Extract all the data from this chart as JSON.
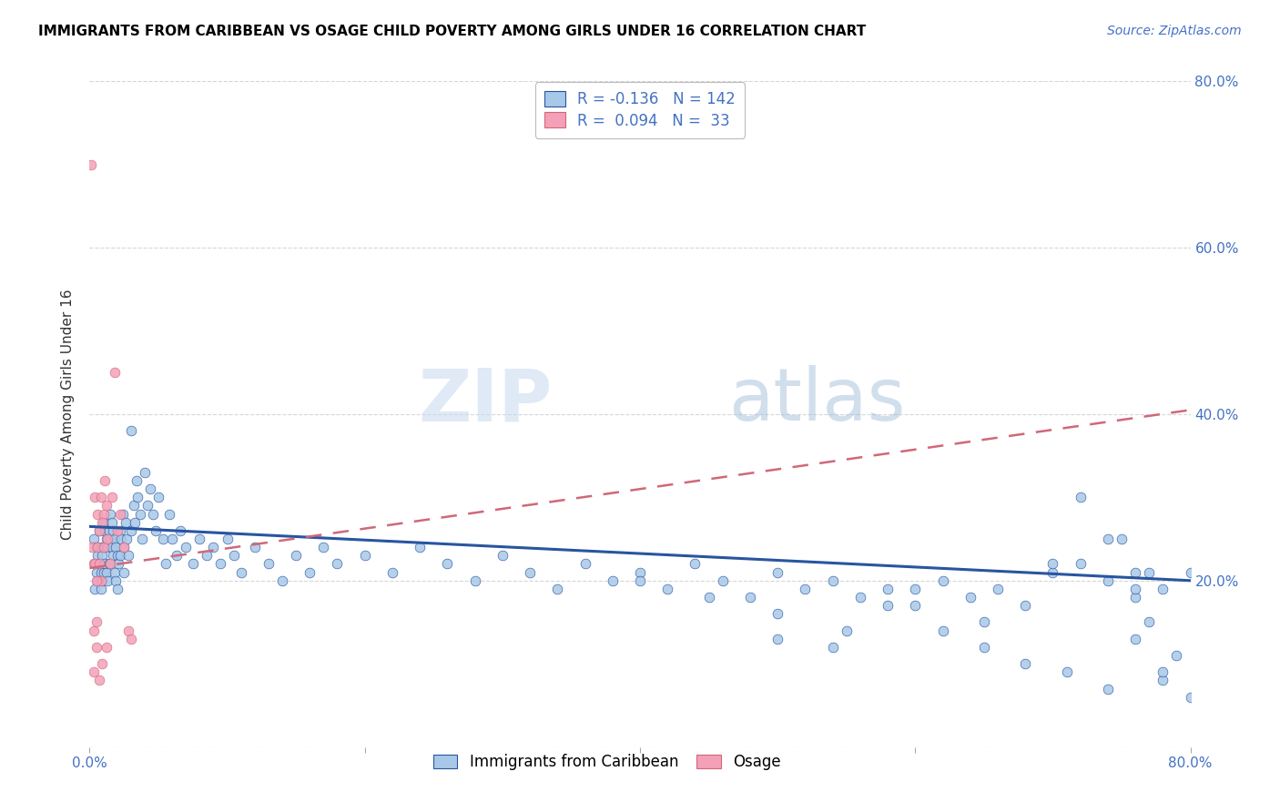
{
  "title": "IMMIGRANTS FROM CARIBBEAN VS OSAGE CHILD POVERTY AMONG GIRLS UNDER 16 CORRELATION CHART",
  "source": "Source: ZipAtlas.com",
  "ylabel": "Child Poverty Among Girls Under 16",
  "xlim": [
    0.0,
    0.8
  ],
  "ylim": [
    0.0,
    0.8
  ],
  "xticks": [
    0.0,
    0.2,
    0.4,
    0.6,
    0.8
  ],
  "yticks": [
    0.0,
    0.2,
    0.4,
    0.6,
    0.8
  ],
  "xticklabels_show": [
    "0.0%",
    "80.0%"
  ],
  "yticklabels_right": [
    "",
    "20.0%",
    "40.0%",
    "60.0%",
    "80.0%"
  ],
  "watermark": "ZIPatlas",
  "color_caribbean": "#a8c8e8",
  "color_osage": "#f4a0b8",
  "line_color_caribbean": "#2855a0",
  "line_color_osage": "#d06878",
  "r_caribbean": -0.136,
  "n_caribbean": 142,
  "r_osage": 0.094,
  "n_osage": 33,
  "carib_trend_x": [
    0.0,
    0.8
  ],
  "carib_trend_y": [
    0.265,
    0.2
  ],
  "osage_trend_x": [
    0.0,
    0.8
  ],
  "osage_trend_y": [
    0.215,
    0.405
  ],
  "carib_x": [
    0.003,
    0.004,
    0.004,
    0.005,
    0.005,
    0.006,
    0.006,
    0.007,
    0.007,
    0.008,
    0.008,
    0.008,
    0.009,
    0.009,
    0.01,
    0.01,
    0.01,
    0.011,
    0.011,
    0.012,
    0.012,
    0.013,
    0.013,
    0.014,
    0.014,
    0.015,
    0.015,
    0.015,
    0.016,
    0.016,
    0.017,
    0.017,
    0.018,
    0.018,
    0.019,
    0.019,
    0.02,
    0.02,
    0.021,
    0.022,
    0.022,
    0.023,
    0.024,
    0.025,
    0.025,
    0.026,
    0.027,
    0.028,
    0.03,
    0.03,
    0.032,
    0.033,
    0.034,
    0.035,
    0.037,
    0.038,
    0.04,
    0.042,
    0.044,
    0.046,
    0.048,
    0.05,
    0.053,
    0.055,
    0.058,
    0.06,
    0.063,
    0.066,
    0.07,
    0.075,
    0.08,
    0.085,
    0.09,
    0.095,
    0.1,
    0.105,
    0.11,
    0.12,
    0.13,
    0.14,
    0.15,
    0.16,
    0.17,
    0.18,
    0.2,
    0.22,
    0.24,
    0.26,
    0.28,
    0.3,
    0.32,
    0.34,
    0.36,
    0.38,
    0.4,
    0.42,
    0.44,
    0.46,
    0.48,
    0.5,
    0.52,
    0.54,
    0.56,
    0.58,
    0.6,
    0.62,
    0.64,
    0.66,
    0.68,
    0.7,
    0.72,
    0.74,
    0.76,
    0.78,
    0.8,
    0.4,
    0.45,
    0.5,
    0.55,
    0.6,
    0.65,
    0.7,
    0.72,
    0.74,
    0.76,
    0.5,
    0.54,
    0.58,
    0.62,
    0.65,
    0.68,
    0.71,
    0.74,
    0.76,
    0.77,
    0.78,
    0.79,
    0.8,
    0.75,
    0.76,
    0.77,
    0.78
  ],
  "carib_y": [
    0.25,
    0.22,
    0.19,
    0.24,
    0.21,
    0.23,
    0.2,
    0.26,
    0.22,
    0.19,
    0.24,
    0.21,
    0.23,
    0.2,
    0.27,
    0.24,
    0.21,
    0.26,
    0.22,
    0.25,
    0.21,
    0.24,
    0.2,
    0.26,
    0.22,
    0.28,
    0.25,
    0.22,
    0.27,
    0.24,
    0.26,
    0.23,
    0.25,
    0.21,
    0.24,
    0.2,
    0.23,
    0.19,
    0.22,
    0.26,
    0.23,
    0.25,
    0.28,
    0.24,
    0.21,
    0.27,
    0.25,
    0.23,
    0.38,
    0.26,
    0.29,
    0.27,
    0.32,
    0.3,
    0.28,
    0.25,
    0.33,
    0.29,
    0.31,
    0.28,
    0.26,
    0.3,
    0.25,
    0.22,
    0.28,
    0.25,
    0.23,
    0.26,
    0.24,
    0.22,
    0.25,
    0.23,
    0.24,
    0.22,
    0.25,
    0.23,
    0.21,
    0.24,
    0.22,
    0.2,
    0.23,
    0.21,
    0.24,
    0.22,
    0.23,
    0.21,
    0.24,
    0.22,
    0.2,
    0.23,
    0.21,
    0.19,
    0.22,
    0.2,
    0.21,
    0.19,
    0.22,
    0.2,
    0.18,
    0.21,
    0.19,
    0.2,
    0.18,
    0.19,
    0.17,
    0.2,
    0.18,
    0.19,
    0.17,
    0.21,
    0.22,
    0.2,
    0.18,
    0.19,
    0.21,
    0.2,
    0.18,
    0.16,
    0.14,
    0.19,
    0.15,
    0.22,
    0.3,
    0.25,
    0.21,
    0.13,
    0.12,
    0.17,
    0.14,
    0.12,
    0.1,
    0.09,
    0.07,
    0.13,
    0.21,
    0.08,
    0.11,
    0.06,
    0.25,
    0.19,
    0.15,
    0.09
  ],
  "osage_x": [
    0.001,
    0.002,
    0.003,
    0.003,
    0.004,
    0.004,
    0.005,
    0.005,
    0.006,
    0.006,
    0.007,
    0.007,
    0.008,
    0.008,
    0.009,
    0.01,
    0.01,
    0.011,
    0.012,
    0.013,
    0.015,
    0.016,
    0.018,
    0.02,
    0.022,
    0.025,
    0.028,
    0.03,
    0.003,
    0.005,
    0.007,
    0.009,
    0.012
  ],
  "osage_y": [
    0.7,
    0.24,
    0.22,
    0.14,
    0.3,
    0.22,
    0.15,
    0.12,
    0.24,
    0.28,
    0.26,
    0.22,
    0.2,
    0.3,
    0.1,
    0.28,
    0.24,
    0.32,
    0.29,
    0.25,
    0.22,
    0.3,
    0.45,
    0.26,
    0.28,
    0.24,
    0.14,
    0.13,
    0.09,
    0.2,
    0.08,
    0.27,
    0.12
  ]
}
